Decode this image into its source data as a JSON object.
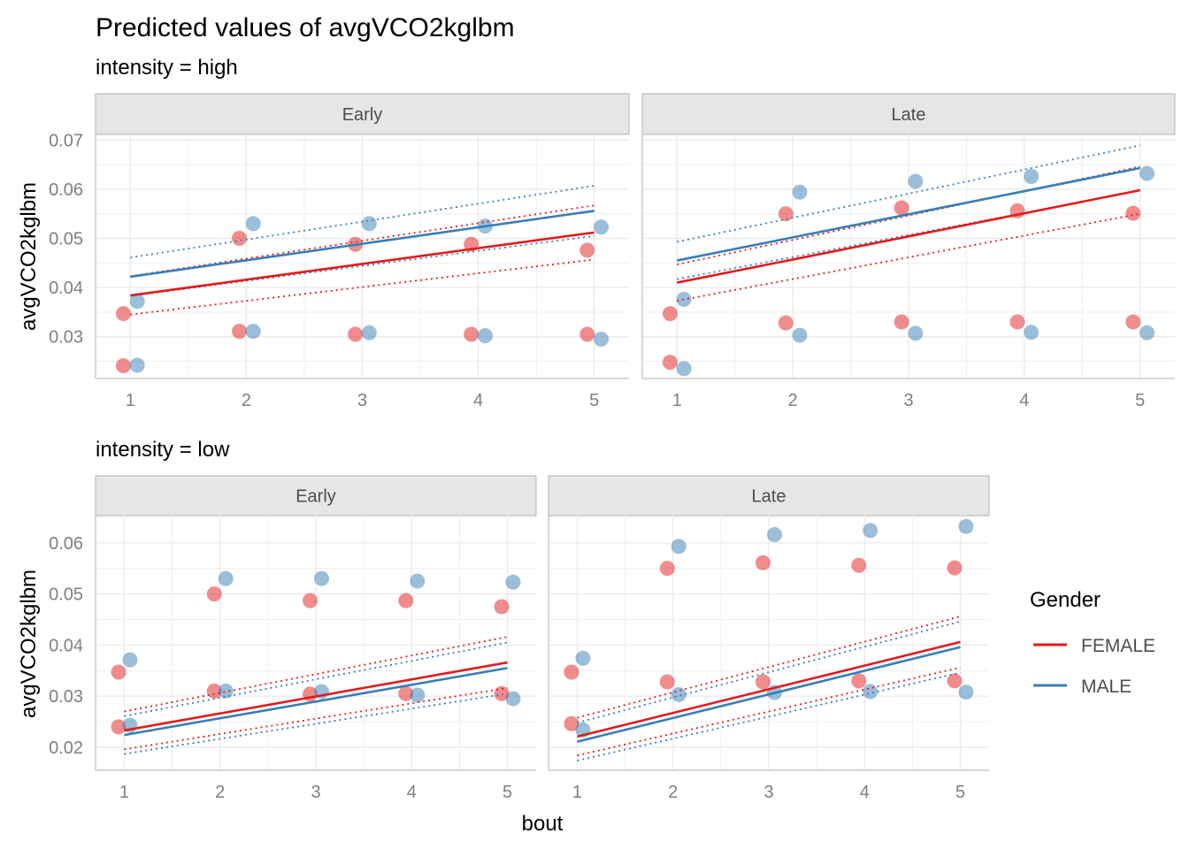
{
  "title": "Predicted values of avgVCO2kglbm",
  "xlabel": "bout",
  "ylabel": "avgVCO2kglbm",
  "legend": {
    "title": "Gender",
    "position": "right",
    "entries": [
      {
        "label": "FEMALE",
        "color": "#E41A1C"
      },
      {
        "label": "MALE",
        "color": "#377EB8"
      }
    ]
  },
  "colors": {
    "FEMALE": "#E41A1C",
    "MALE": "#377EB8",
    "strip_bg": "#E6E6E6",
    "grid": "#EBEBEB",
    "axis_text": "#4D4D4D",
    "tick_text": "#7F7F7F"
  },
  "chart_data": [
    {
      "type": "line",
      "group_label": "intensity = high",
      "facet": "Early",
      "grid": true,
      "xlim": [
        0.7,
        5.3
      ],
      "ylim": [
        0.0215,
        0.0715
      ],
      "x_ticks": [
        1,
        2,
        3,
        4,
        5
      ],
      "y_ticks": [
        0.03,
        0.04,
        0.05,
        0.06,
        0.07
      ],
      "y_tick_labels": [
        "0.03",
        "0.04",
        "0.05",
        "0.06",
        "0.07"
      ],
      "series": [
        {
          "name": "FEMALE",
          "x": [
            1,
            5
          ],
          "fit": [
            0.0384,
            0.0512
          ],
          "ci_lower": [
            0.0345,
            0.0457
          ],
          "ci_upper": [
            0.0423,
            0.0567
          ],
          "points_x": [
            1,
            1,
            2,
            3,
            4,
            5,
            2,
            3,
            4,
            5
          ],
          "points_y": [
            0.0347,
            0.0241,
            0.05,
            0.0488,
            0.0488,
            0.0476,
            0.0311,
            0.0305,
            0.0305,
            0.0305
          ]
        },
        {
          "name": "MALE",
          "x": [
            1,
            5
          ],
          "fit": [
            0.0422,
            0.0556
          ],
          "ci_lower": [
            0.0383,
            0.0505
          ],
          "ci_upper": [
            0.0461,
            0.0607
          ],
          "points_x": [
            1,
            1,
            2,
            3,
            4,
            5,
            2,
            3,
            4,
            5
          ],
          "points_y": [
            0.0372,
            0.0242,
            0.053,
            0.053,
            0.0525,
            0.0523,
            0.0311,
            0.0308,
            0.0302,
            0.0295
          ]
        }
      ]
    },
    {
      "type": "line",
      "group_label": "intensity = high",
      "facet": "Late",
      "grid": true,
      "xlim": [
        0.7,
        5.3
      ],
      "ylim": [
        0.0215,
        0.0715
      ],
      "x_ticks": [
        1,
        2,
        3,
        4,
        5
      ],
      "y_ticks": [
        0.03,
        0.04,
        0.05,
        0.06,
        0.07
      ],
      "y_tick_labels": [],
      "series": [
        {
          "name": "FEMALE",
          "x": [
            1,
            5
          ],
          "fit": [
            0.041,
            0.0598
          ],
          "ci_lower": [
            0.0373,
            0.055
          ],
          "ci_upper": [
            0.0447,
            0.0646
          ],
          "points_x": [
            1,
            1,
            2,
            3,
            4,
            5,
            2,
            3,
            4,
            5
          ],
          "points_y": [
            0.0347,
            0.0248,
            0.055,
            0.0562,
            0.0556,
            0.0551,
            0.0328,
            0.033,
            0.033,
            0.033
          ]
        },
        {
          "name": "MALE",
          "x": [
            1,
            5
          ],
          "fit": [
            0.0455,
            0.0643
          ],
          "ci_lower": [
            0.0417,
            0.0597
          ],
          "ci_upper": [
            0.0493,
            0.0689
          ],
          "points_x": [
            1,
            1,
            2,
            3,
            4,
            5,
            2,
            3,
            4,
            5
          ],
          "points_y": [
            0.0376,
            0.0235,
            0.0594,
            0.0616,
            0.0626,
            0.0632,
            0.0303,
            0.0307,
            0.0309,
            0.0308
          ]
        }
      ]
    },
    {
      "type": "line",
      "group_label": "intensity = low",
      "facet": "Early",
      "grid": true,
      "xlim": [
        0.7,
        5.3
      ],
      "ylim": [
        0.0155,
        0.0655
      ],
      "x_ticks": [
        1,
        2,
        3,
        4,
        5
      ],
      "y_ticks": [
        0.02,
        0.03,
        0.04,
        0.05,
        0.06
      ],
      "y_tick_labels": [
        "0.02",
        "0.03",
        "0.04",
        "0.05",
        "0.06"
      ],
      "series": [
        {
          "name": "FEMALE",
          "x": [
            1,
            5
          ],
          "fit": [
            0.0233,
            0.0366
          ],
          "ci_lower": [
            0.0196,
            0.0316
          ],
          "ci_upper": [
            0.027,
            0.0416
          ],
          "points_x": [
            1,
            1,
            2,
            3,
            4,
            5,
            2,
            3,
            4,
            5
          ],
          "points_y": [
            0.0347,
            0.024,
            0.05,
            0.0487,
            0.0487,
            0.0475,
            0.031,
            0.0304,
            0.0305,
            0.0305
          ]
        },
        {
          "name": "MALE",
          "x": [
            1,
            5
          ],
          "fit": [
            0.0224,
            0.0355
          ],
          "ci_lower": [
            0.0187,
            0.0305
          ],
          "ci_upper": [
            0.0261,
            0.0405
          ],
          "points_x": [
            1,
            1,
            2,
            3,
            4,
            5,
            2,
            3,
            4,
            5
          ],
          "points_y": [
            0.0371,
            0.0243,
            0.053,
            0.053,
            0.0525,
            0.0523,
            0.031,
            0.0309,
            0.0302,
            0.0295
          ]
        }
      ]
    },
    {
      "type": "line",
      "group_label": "intensity = low",
      "facet": "Late",
      "grid": true,
      "xlim": [
        0.7,
        5.3
      ],
      "ylim": [
        0.0155,
        0.0655
      ],
      "x_ticks": [
        1,
        2,
        3,
        4,
        5
      ],
      "y_ticks": [
        0.02,
        0.03,
        0.04,
        0.05,
        0.06
      ],
      "y_tick_labels": [],
      "series": [
        {
          "name": "FEMALE",
          "x": [
            1,
            5
          ],
          "fit": [
            0.0221,
            0.0406
          ],
          "ci_lower": [
            0.0184,
            0.0356
          ],
          "ci_upper": [
            0.0258,
            0.0456
          ],
          "points_x": [
            1,
            1,
            2,
            3,
            4,
            5,
            2,
            3,
            4,
            5
          ],
          "points_y": [
            0.0347,
            0.0246,
            0.055,
            0.0561,
            0.0556,
            0.0551,
            0.0328,
            0.0328,
            0.033,
            0.033
          ]
        },
        {
          "name": "MALE",
          "x": [
            1,
            5
          ],
          "fit": [
            0.0211,
            0.0396
          ],
          "ci_lower": [
            0.0174,
            0.0346
          ],
          "ci_upper": [
            0.0248,
            0.0446
          ],
          "points_x": [
            1,
            1,
            2,
            3,
            4,
            5,
            2,
            3,
            4,
            5
          ],
          "points_y": [
            0.0374,
            0.0234,
            0.0593,
            0.0616,
            0.0624,
            0.0632,
            0.0303,
            0.0307,
            0.0309,
            0.0308
          ]
        }
      ]
    }
  ]
}
